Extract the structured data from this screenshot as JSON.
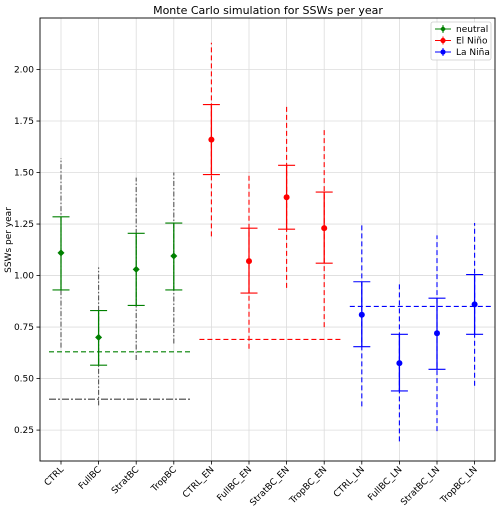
{
  "chart_data": {
    "type": "scatter",
    "title": "Monte Carlo simulation for SSWs per year",
    "xlabel": "",
    "ylabel": "SSWs per year",
    "ylim": [
      0.1,
      2.25
    ],
    "yticks": [
      0.25,
      0.5,
      0.75,
      1.0,
      1.25,
      1.5,
      1.75,
      2.0
    ],
    "ytick_labels": [
      "0.25",
      "0.50",
      "0.75",
      "1.00",
      "1.25",
      "1.50",
      "1.75",
      "2.00"
    ],
    "grid": true,
    "legend_position": "top-right",
    "categories": [
      "CTRL",
      "FullBC",
      "StratBC",
      "TropBC",
      "CTRL_EN",
      "FullBC_EN",
      "StratBC_EN",
      "TropBC_EN",
      "CTRL_LN",
      "FullBC_LN",
      "StratBC_LN",
      "TropBC_LN"
    ],
    "series": [
      {
        "name": "neutral",
        "color": "#008000",
        "marker": "diamond",
        "indices": [
          0,
          1,
          2,
          3
        ],
        "values": [
          1.11,
          0.7,
          1.03,
          1.095
        ],
        "ci_inner": [
          [
            0.93,
            1.285
          ],
          [
            0.565,
            0.83
          ],
          [
            0.855,
            1.205
          ],
          [
            0.93,
            1.255
          ]
        ],
        "ci_outer": [
          [
            0.65,
            1.57
          ],
          [
            0.37,
            1.04
          ],
          [
            0.59,
            1.475
          ],
          [
            0.67,
            1.5
          ]
        ],
        "reference_level": 0.63,
        "reference_level_2": 0.4
      },
      {
        "name": "El Niño",
        "color": "#ff0000",
        "marker": "circle",
        "indices": [
          4,
          5,
          6,
          7
        ],
        "values": [
          1.66,
          1.07,
          1.38,
          1.23
        ],
        "ci_inner": [
          [
            1.49,
            1.83
          ],
          [
            0.915,
            1.23
          ],
          [
            1.225,
            1.535
          ],
          [
            1.06,
            1.405
          ]
        ],
        "ci_outer": [
          [
            1.19,
            2.13
          ],
          [
            0.645,
            1.5
          ],
          [
            0.94,
            1.82
          ],
          [
            0.75,
            1.72
          ]
        ],
        "reference_level": 0.69
      },
      {
        "name": "La Niña",
        "color": "#0000ff",
        "marker": "circle",
        "indices": [
          8,
          9,
          10,
          11
        ],
        "values": [
          0.81,
          0.575,
          0.72,
          0.86
        ],
        "ci_inner": [
          [
            0.655,
            0.97
          ],
          [
            0.44,
            0.715
          ],
          [
            0.545,
            0.89
          ],
          [
            0.715,
            1.005
          ]
        ],
        "ci_outer": [
          [
            0.365,
            1.255
          ],
          [
            0.195,
            0.965
          ],
          [
            0.245,
            1.195
          ],
          [
            0.465,
            1.255
          ]
        ],
        "reference_level": 0.85
      }
    ],
    "legend": [
      {
        "label": "neutral",
        "color": "#008000",
        "marker": "diamond"
      },
      {
        "label": "El Niño",
        "color": "#ff0000",
        "marker": "circle"
      },
      {
        "label": "La Niña",
        "color": "#0000ff",
        "marker": "circle"
      }
    ]
  }
}
